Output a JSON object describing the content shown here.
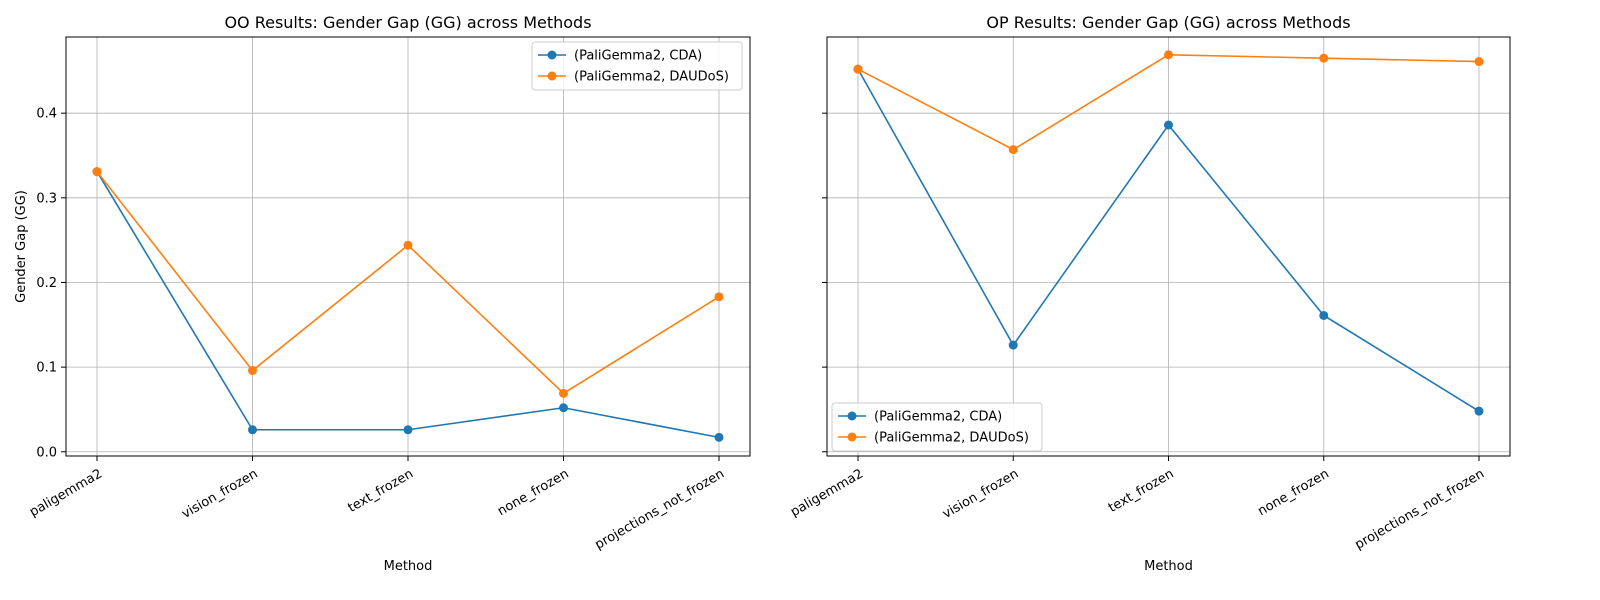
{
  "chart_data": [
    {
      "type": "line",
      "title": "OO Results: Gender Gap (GG) across Methods",
      "xlabel": "Method",
      "ylabel": "Gender Gap (GG)",
      "categories": [
        "paligemma2",
        "vision_frozen",
        "text_frozen",
        "none_frozen",
        "projections_not_frozen"
      ],
      "ylim": [
        -0.005,
        0.49
      ],
      "yticks": [
        0.0,
        0.1,
        0.2,
        0.3,
        0.4
      ],
      "ytick_labels": [
        "0.0",
        "0.1",
        "0.2",
        "0.3",
        "0.4"
      ],
      "grid": true,
      "legend_position": "upper right",
      "series": [
        {
          "name": "(PaliGemma2, CDA)",
          "color": "#1f77b4",
          "values": [
            0.331,
            0.026,
            0.026,
            0.052,
            0.017
          ]
        },
        {
          "name": "(PaliGemma2, DAUDoS)",
          "color": "#ff7f0e",
          "values": [
            0.331,
            0.096,
            0.244,
            0.069,
            0.183
          ]
        }
      ]
    },
    {
      "type": "line",
      "title": "OP Results: Gender Gap (GG) across Methods",
      "xlabel": "Method",
      "ylabel": "",
      "categories": [
        "paligemma2",
        "vision_frozen",
        "text_frozen",
        "none_frozen",
        "projections_not_frozen"
      ],
      "ylim": [
        -0.005,
        0.49
      ],
      "yticks": [
        0.0,
        0.1,
        0.2,
        0.3,
        0.4
      ],
      "ytick_labels": [
        "",
        "",
        "",
        "",
        ""
      ],
      "grid": true,
      "legend_position": "lower left",
      "series": [
        {
          "name": "(PaliGemma2, CDA)",
          "color": "#1f77b4",
          "values": [
            0.452,
            0.126,
            0.386,
            0.161,
            0.048
          ]
        },
        {
          "name": "(PaliGemma2, DAUDoS)",
          "color": "#ff7f0e",
          "values": [
            0.452,
            0.357,
            0.469,
            0.465,
            0.461
          ]
        }
      ]
    }
  ]
}
